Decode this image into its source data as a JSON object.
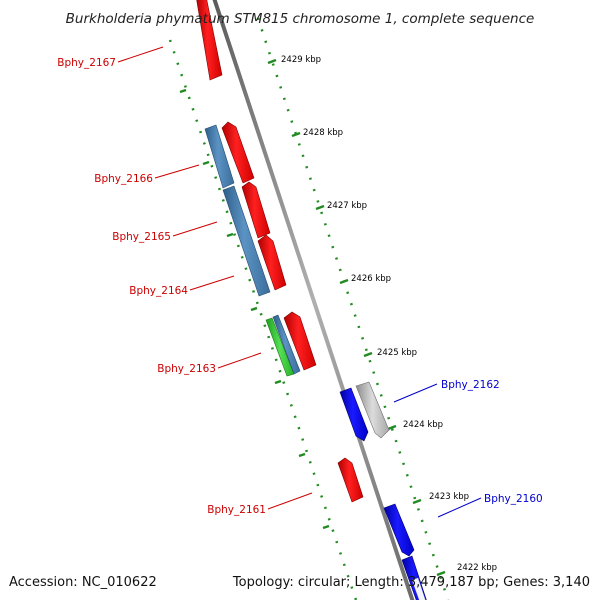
{
  "title": "Burkholderia phymatum STM815 chromosome 1, complete sequence",
  "accession": "Accession: NC_010622",
  "topology": "Topology: circular; Length: 3,479,187 bp; Genes: 3,140",
  "colors": {
    "forward_gene": "#ff0000",
    "reverse_gene": "#0000ee",
    "cds_steelblue": "#4682b4",
    "rna_green": "#33cc33",
    "pseudo_gray": "#b8b8b8",
    "backbone": "#808080",
    "ruler": "#228b22",
    "label_forward": "#cc0000",
    "label_reverse": "#0000cc"
  },
  "ruler_labels": [
    "2429 kbp",
    "2428 kbp",
    "2427 kbp",
    "2426 kbp",
    "2425 kbp",
    "2424 kbp",
    "2423 kbp",
    "2422 kbp"
  ],
  "gene_labels": [
    {
      "text": "Bphy_2167",
      "strand": "forward"
    },
    {
      "text": "Bphy_2166",
      "strand": "forward"
    },
    {
      "text": "Bphy_2165",
      "strand": "forward"
    },
    {
      "text": "Bphy_2164",
      "strand": "forward"
    },
    {
      "text": "Bphy_2163",
      "strand": "forward"
    },
    {
      "text": "Bphy_2162",
      "strand": "reverse"
    },
    {
      "text": "Bphy_2161",
      "strand": "forward"
    },
    {
      "text": "Bphy_2160",
      "strand": "reverse"
    }
  ]
}
